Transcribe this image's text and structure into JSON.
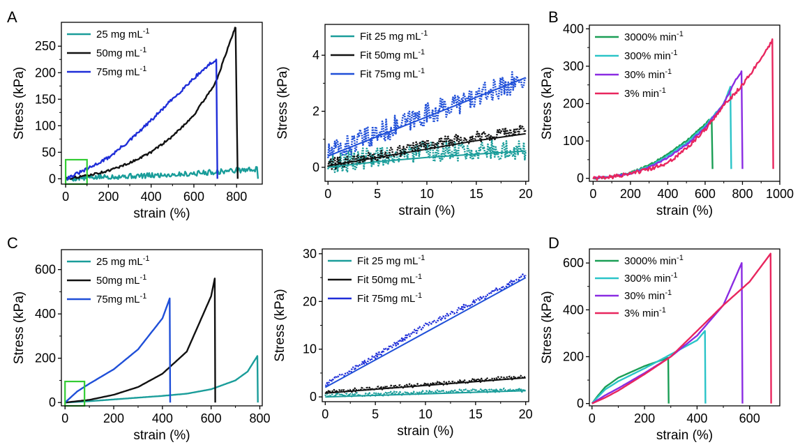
{
  "panel_letters": [
    "A",
    "B",
    "C",
    "D"
  ],
  "units": {
    "concentration": "mg mL",
    "rate": "% min",
    "exponent": "-1"
  },
  "chart_data": [
    {
      "type": "line",
      "panel": "A",
      "xlabel": "strain (%)",
      "ylabel": "Stress (kPa)",
      "xlim": [
        -20,
        920
      ],
      "ylim": [
        -10,
        295
      ],
      "xticks": [
        0,
        200,
        400,
        600,
        800
      ],
      "yticks": [
        0,
        50,
        100,
        150,
        200,
        250
      ],
      "legend_position": "top-left",
      "inset_box": {
        "x": [
          0,
          100
        ],
        "y": [
          -10,
          36
        ],
        "color": "#33cc33"
      },
      "series": [
        {
          "name": "25 mg mL",
          "color": "#1a9d9a",
          "noisy": true,
          "noise": 5,
          "points": [
            [
              0,
              0
            ],
            [
              100,
              2
            ],
            [
              200,
              4
            ],
            [
              300,
              5
            ],
            [
              400,
              6
            ],
            [
              500,
              8
            ],
            [
              600,
              10
            ],
            [
              700,
              13
            ],
            [
              800,
              16
            ],
            [
              900,
              18
            ],
            [
              900,
              0
            ]
          ]
        },
        {
          "name": "50mg mL",
          "color": "#111111",
          "noisy": true,
          "noise": 2,
          "points": [
            [
              0,
              0
            ],
            [
              100,
              6
            ],
            [
              200,
              15
            ],
            [
              300,
              30
            ],
            [
              400,
              50
            ],
            [
              500,
              80
            ],
            [
              600,
              120
            ],
            [
              700,
              180
            ],
            [
              750,
              235
            ],
            [
              790,
              282
            ],
            [
              795,
              285
            ],
            [
              805,
              0
            ]
          ]
        },
        {
          "name": "75mg mL",
          "color": "#1f2ed8",
          "noisy": true,
          "noise": 3,
          "points": [
            [
              0,
              0
            ],
            [
              100,
              18
            ],
            [
              200,
              40
            ],
            [
              300,
              72
            ],
            [
              400,
              110
            ],
            [
              500,
              150
            ],
            [
              600,
              190
            ],
            [
              680,
              218
            ],
            [
              705,
              222
            ],
            [
              710,
              0
            ]
          ]
        }
      ]
    },
    {
      "type": "line",
      "panel": "A-inset",
      "xlabel": "strain (%)",
      "ylabel": "Stress (kPa)",
      "xlim": [
        -0.3,
        20.3
      ],
      "ylim": [
        -0.5,
        5.1
      ],
      "xticks": [
        0,
        5,
        10,
        15,
        20
      ],
      "yticks": [
        0,
        2,
        4
      ],
      "legend_position": "top-left",
      "series": [
        {
          "name": "Fit 25 mg mL",
          "color": "#1a9d9a",
          "style": "dotted",
          "noisy": true,
          "noise": 0.38,
          "points": [
            [
              0,
              0.1
            ],
            [
              5,
              0.4
            ],
            [
              10,
              0.55
            ],
            [
              15,
              0.65
            ],
            [
              20,
              0.6
            ]
          ]
        },
        {
          "name": "Fit 50mg mL",
          "color": "#111111",
          "style": "dotted",
          "noisy": true,
          "noise": 0.2,
          "points": [
            [
              0,
              0.1
            ],
            [
              5,
              0.4
            ],
            [
              10,
              0.8
            ],
            [
              15,
              1.1
            ],
            [
              20,
              1.35
            ]
          ]
        },
        {
          "name": "Fit 75mg mL",
          "color": "#1f4fd8",
          "style": "dotted",
          "noisy": true,
          "noise": 0.4,
          "points": [
            [
              0,
              0.5
            ],
            [
              5,
              1.2
            ],
            [
              10,
              1.9
            ],
            [
              15,
              2.5
            ],
            [
              20,
              3.2
            ]
          ]
        },
        {
          "name": "",
          "color": "#1a9d9a",
          "style": "fit",
          "points": [
            [
              0,
              0
            ],
            [
              5,
              0.2
            ],
            [
              10,
              0.35
            ],
            [
              15,
              0.47
            ],
            [
              20,
              0.58
            ]
          ]
        },
        {
          "name": "",
          "color": "#111111",
          "style": "fit",
          "points": [
            [
              0,
              0.05
            ],
            [
              5,
              0.35
            ],
            [
              10,
              0.65
            ],
            [
              15,
              0.95
            ],
            [
              20,
              1.2
            ]
          ]
        },
        {
          "name": "",
          "color": "#1f4fd8",
          "style": "fit",
          "points": [
            [
              0,
              0.4
            ],
            [
              20,
              3.2
            ]
          ]
        }
      ]
    },
    {
      "type": "line",
      "panel": "B",
      "xlabel": "strain (%)",
      "ylabel": "Stress (kPa)",
      "xlim": [
        -20,
        1000
      ],
      "ylim": [
        -8,
        410
      ],
      "xticks": [
        0,
        200,
        400,
        600,
        800,
        1000
      ],
      "xtick_labels": [
        "0",
        "200",
        "400",
        "600",
        "800",
        "1000"
      ],
      "yticks": [
        0,
        100,
        200,
        300,
        400
      ],
      "legend_position": "top-left",
      "series": [
        {
          "name": "3000% min",
          "color": "#1a9e55",
          "noisy": true,
          "noise": 2,
          "points": [
            [
              0,
              0
            ],
            [
              100,
              5
            ],
            [
              200,
              15
            ],
            [
              300,
              35
            ],
            [
              400,
              65
            ],
            [
              500,
              100
            ],
            [
              600,
              145
            ],
            [
              640,
              165
            ],
            [
              640,
              25
            ]
          ]
        },
        {
          "name": "300% min",
          "color": "#2bc4c8",
          "noisy": true,
          "noise": 2,
          "points": [
            [
              0,
              0
            ],
            [
              100,
              5
            ],
            [
              200,
              14
            ],
            [
              300,
              32
            ],
            [
              400,
              60
            ],
            [
              500,
              95
            ],
            [
              600,
              140
            ],
            [
              700,
              200
            ],
            [
              735,
              245
            ],
            [
              740,
              25
            ]
          ]
        },
        {
          "name": "30% min",
          "color": "#8a2be2",
          "noisy": true,
          "noise": 2,
          "points": [
            [
              0,
              0
            ],
            [
              100,
              5
            ],
            [
              200,
              13
            ],
            [
              300,
              30
            ],
            [
              400,
              55
            ],
            [
              500,
              90
            ],
            [
              600,
              135
            ],
            [
              700,
              200
            ],
            [
              760,
              260
            ],
            [
              795,
              285
            ],
            [
              800,
              25
            ]
          ]
        },
        {
          "name": "3% min",
          "color": "#e8265e",
          "noisy": true,
          "noise": 5,
          "points": [
            [
              0,
              0
            ],
            [
              100,
              4
            ],
            [
              200,
              12
            ],
            [
              300,
              25
            ],
            [
              400,
              40
            ],
            [
              500,
              80
            ],
            [
              600,
              130
            ],
            [
              700,
              195
            ],
            [
              800,
              250
            ],
            [
              900,
              320
            ],
            [
              960,
              370
            ],
            [
              965,
              25
            ]
          ]
        }
      ]
    },
    {
      "type": "line",
      "panel": "C",
      "xlabel": "strain (%)",
      "ylabel": "Stress (kPa)",
      "xlim": [
        -15,
        810
      ],
      "ylim": [
        -15,
        690
      ],
      "xticks": [
        0,
        200,
        400,
        600,
        800
      ],
      "yticks": [
        0,
        200,
        400,
        600
      ],
      "legend_position": "top-left",
      "inset_box": {
        "x": [
          0,
          80
        ],
        "y": [
          -15,
          95
        ],
        "color": "#33cc33"
      },
      "series": [
        {
          "name": "25 mg mL",
          "color": "#1a9d9a",
          "points": [
            [
              0,
              0
            ],
            [
              100,
              6
            ],
            [
              200,
              14
            ],
            [
              300,
              22
            ],
            [
              400,
              30
            ],
            [
              500,
              40
            ],
            [
              600,
              60
            ],
            [
              700,
              100
            ],
            [
              750,
              140
            ],
            [
              790,
              210
            ],
            [
              792,
              0
            ]
          ]
        },
        {
          "name": "50mg mL",
          "color": "#111111",
          "points": [
            [
              0,
              0
            ],
            [
              100,
              12
            ],
            [
              200,
              35
            ],
            [
              300,
              70
            ],
            [
              400,
              130
            ],
            [
              500,
              230
            ],
            [
              600,
              480
            ],
            [
              615,
              560
            ],
            [
              617,
              0
            ]
          ]
        },
        {
          "name": "75mg mL",
          "color": "#1f4fd8",
          "points": [
            [
              0,
              0
            ],
            [
              50,
              50
            ],
            [
              100,
              85
            ],
            [
              200,
              150
            ],
            [
              300,
              240
            ],
            [
              400,
              380
            ],
            [
              430,
              470
            ],
            [
              432,
              0
            ]
          ]
        }
      ]
    },
    {
      "type": "line",
      "panel": "C-inset",
      "xlabel": "strain (%)",
      "ylabel": "Stress (kPa)",
      "xlim": [
        -0.3,
        20.3
      ],
      "ylim": [
        -1,
        31
      ],
      "xticks": [
        0,
        5,
        10,
        15,
        20
      ],
      "yticks": [
        0,
        10,
        20,
        30
      ],
      "legend_position": "top-left",
      "series": [
        {
          "name": "Fit 25 mg mL",
          "color": "#1a9d9a",
          "style": "dotted",
          "noisy": true,
          "noise": 0.4,
          "points": [
            [
              0,
              0.3
            ],
            [
              5,
              0.6
            ],
            [
              10,
              1.0
            ],
            [
              15,
              1.3
            ],
            [
              20,
              1.5
            ]
          ]
        },
        {
          "name": "Fit 50mg mL",
          "color": "#111111",
          "style": "dotted",
          "noisy": true,
          "noise": 0.4,
          "points": [
            [
              0,
              1.0
            ],
            [
              5,
              1.8
            ],
            [
              10,
              2.6
            ],
            [
              15,
              3.4
            ],
            [
              20,
              4.2
            ]
          ]
        },
        {
          "name": "Fit 75mg mL",
          "color": "#1f2ed8",
          "style": "dotted",
          "noisy": true,
          "noise": 0.5,
          "points": [
            [
              0,
              2.5
            ],
            [
              2,
              5
            ],
            [
              5,
              8.5
            ],
            [
              10,
              15
            ],
            [
              15,
              20
            ],
            [
              20,
              25.5
            ]
          ]
        },
        {
          "name": "",
          "color": "#1a9d9a",
          "style": "fit",
          "points": [
            [
              0,
              0
            ],
            [
              20,
              1.3
            ]
          ]
        },
        {
          "name": "",
          "color": "#111111",
          "style": "fit",
          "points": [
            [
              0,
              0.8
            ],
            [
              20,
              4.0
            ]
          ]
        },
        {
          "name": "",
          "color": "#1f4fd8",
          "style": "fit",
          "points": [
            [
              0,
              2
            ],
            [
              20,
              25
            ]
          ]
        }
      ]
    },
    {
      "type": "line",
      "panel": "D",
      "xlabel": "strain (%)",
      "ylabel": "Stress (kPa)",
      "xlim": [
        -10,
        715
      ],
      "ylim": [
        -10,
        660
      ],
      "xticks": [
        0,
        200,
        400,
        600
      ],
      "yticks": [
        0,
        200,
        400,
        600
      ],
      "legend_position": "top-left",
      "series": [
        {
          "name": "3000% min",
          "color": "#1a9e55",
          "points": [
            [
              0,
              0
            ],
            [
              20,
              30
            ],
            [
              50,
              70
            ],
            [
              100,
              110
            ],
            [
              200,
              160
            ],
            [
              290,
              195
            ],
            [
              292,
              0
            ]
          ]
        },
        {
          "name": "300% min",
          "color": "#2bc4c8",
          "points": [
            [
              0,
              0
            ],
            [
              20,
              25
            ],
            [
              50,
              60
            ],
            [
              100,
              95
            ],
            [
              200,
              150
            ],
            [
              300,
              210
            ],
            [
              400,
              270
            ],
            [
              430,
              310
            ],
            [
              432,
              0
            ]
          ]
        },
        {
          "name": "30% min",
          "color": "#8a2be2",
          "points": [
            [
              0,
              0
            ],
            [
              50,
              35
            ],
            [
              100,
              65
            ],
            [
              200,
              130
            ],
            [
              300,
              200
            ],
            [
              400,
              290
            ],
            [
              500,
              420
            ],
            [
              570,
              600
            ],
            [
              573,
              0
            ]
          ]
        },
        {
          "name": "3% min",
          "color": "#e8265e",
          "points": [
            [
              0,
              0
            ],
            [
              50,
              25
            ],
            [
              100,
              55
            ],
            [
              200,
              125
            ],
            [
              300,
              200
            ],
            [
              400,
              310
            ],
            [
              500,
              420
            ],
            [
              600,
              520
            ],
            [
              680,
              640
            ],
            [
              682,
              0
            ]
          ]
        }
      ]
    }
  ]
}
